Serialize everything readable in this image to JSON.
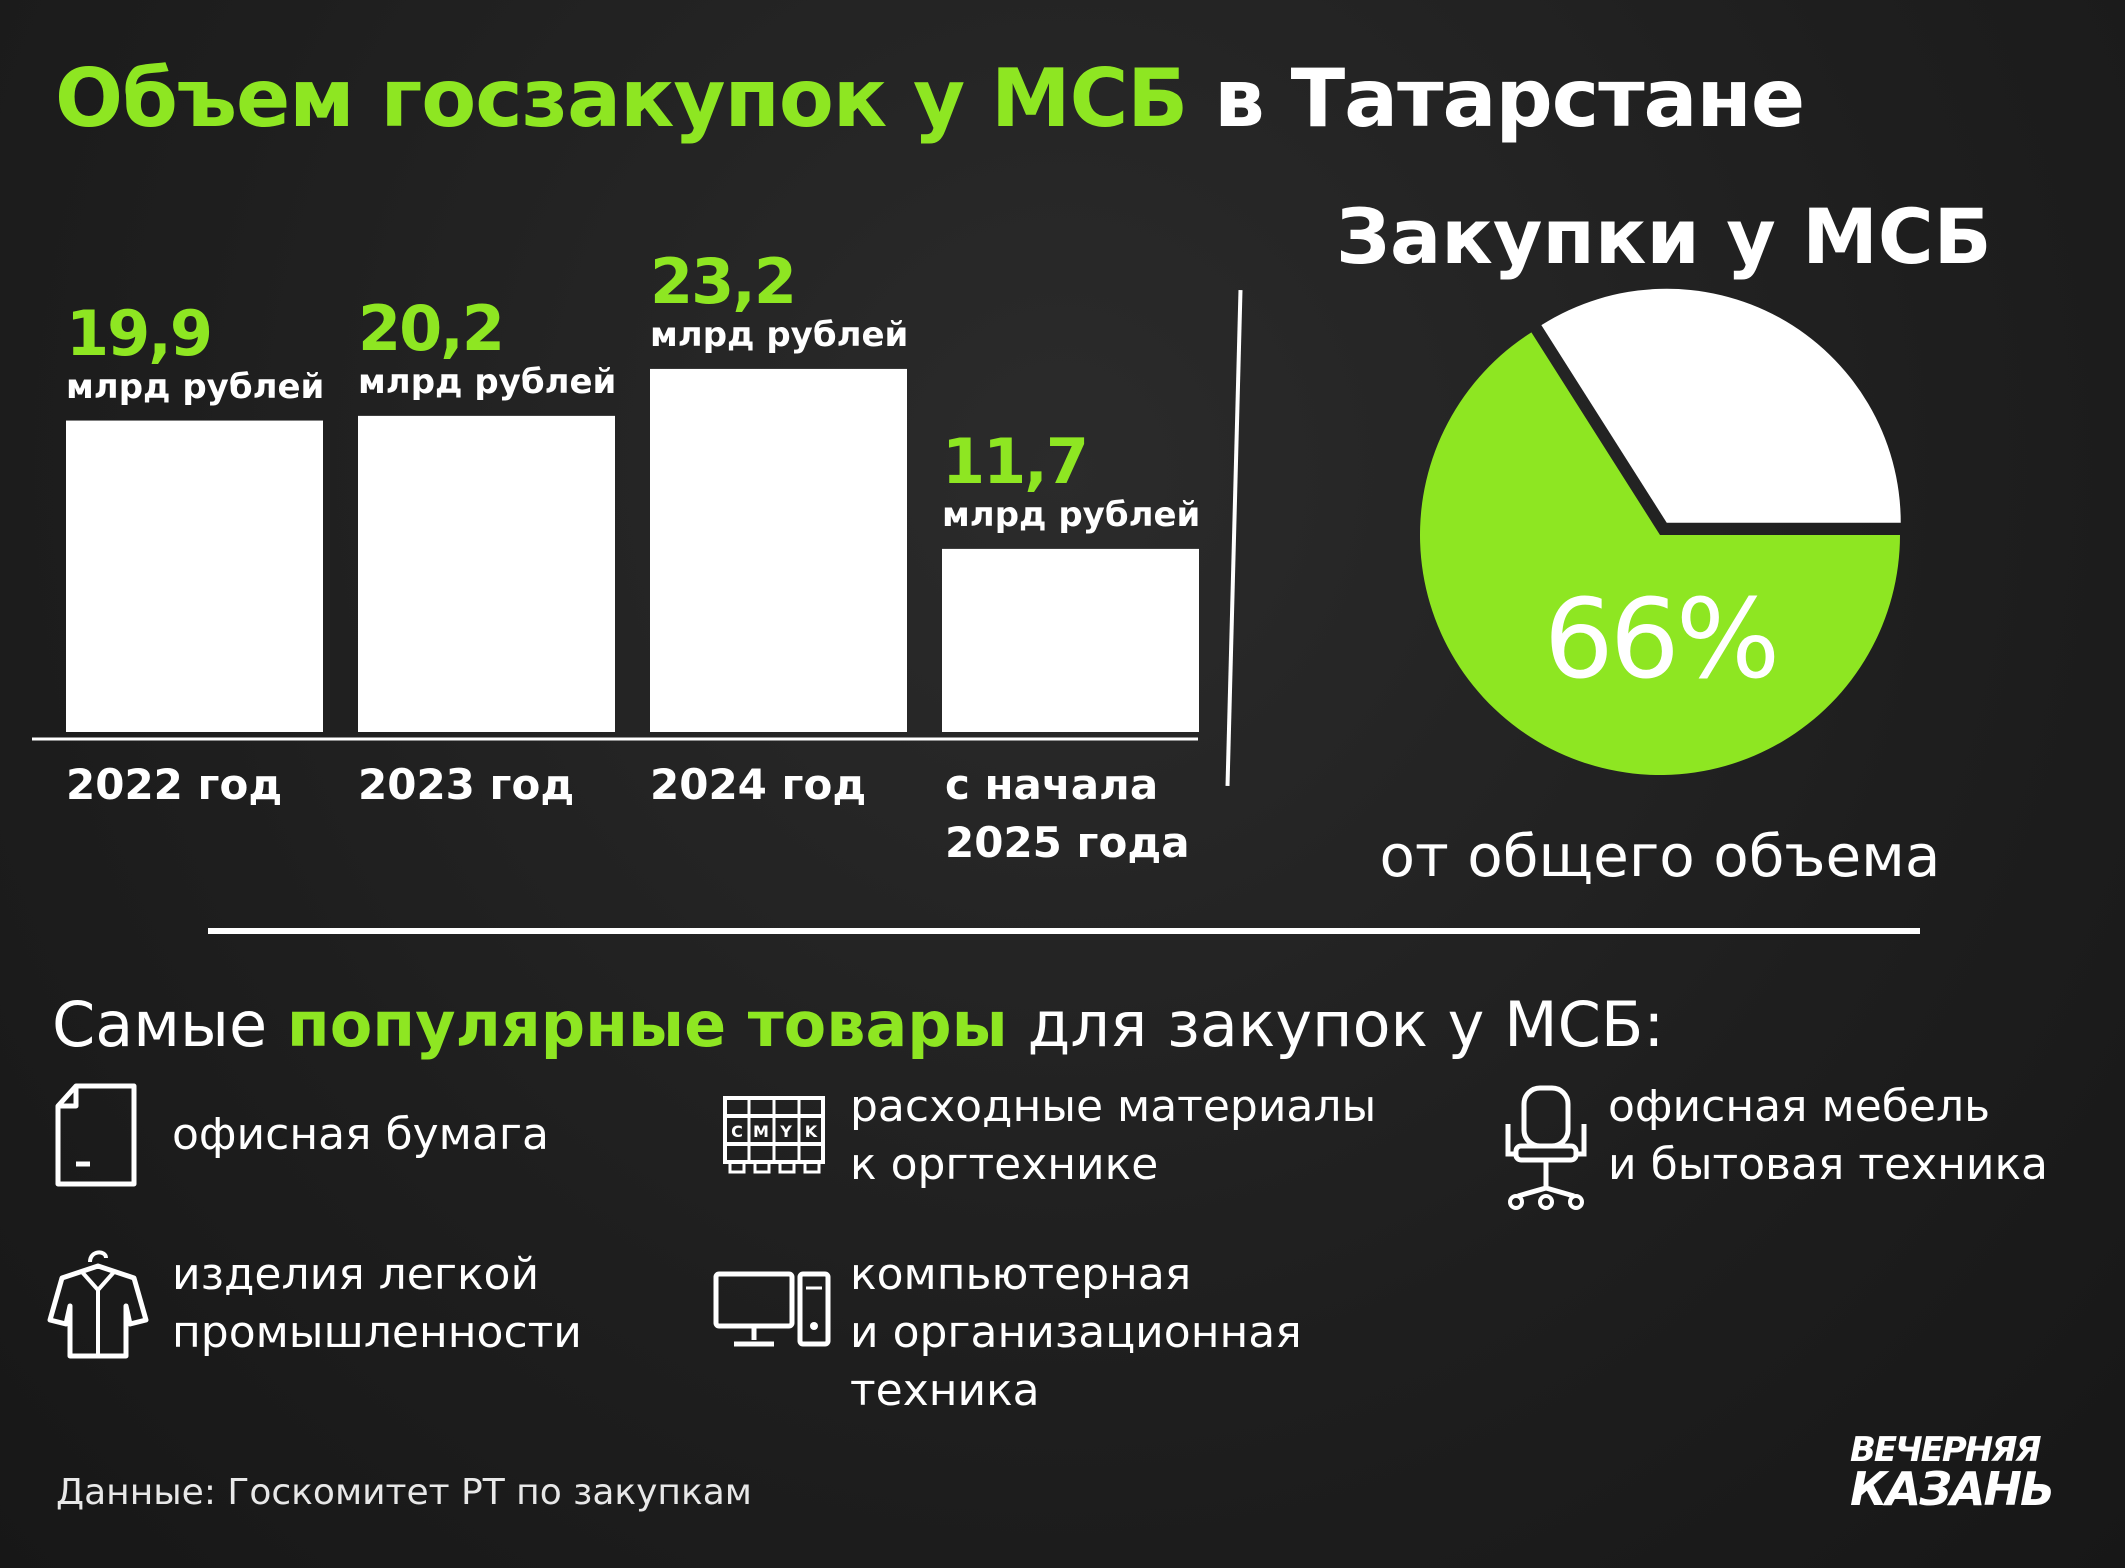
{
  "title": {
    "part1": "Объем госзакупок у МСБ",
    "part2": " в Татарстане"
  },
  "chart_data": [
    {
      "type": "bar",
      "categories": [
        "2022 год",
        "2023 год",
        "2024 год",
        "с начала 2025 года"
      ],
      "category_lines": [
        [
          "2022 год"
        ],
        [
          "2023 год"
        ],
        [
          "2024 год"
        ],
        [
          "с начала",
          "2025 года"
        ]
      ],
      "values": [
        19.9,
        20.2,
        23.2,
        11.7
      ],
      "value_labels": [
        "19,9",
        "20,2",
        "23,2",
        "11,7"
      ],
      "unit": "млрд рублей"
    },
    {
      "type": "pie",
      "title": "Закупки у МСБ",
      "values": [
        66,
        34
      ],
      "label": "66%",
      "caption": "от общего объема"
    }
  ],
  "colors": {
    "accent": "#8ee622",
    "bar": "#ffffff",
    "pie_rest": "#ffffff"
  },
  "categories_section": {
    "title": {
      "part1": "Самые ",
      "part2": "популярные товары",
      "part3": " для закупок у МСБ:"
    },
    "items": [
      {
        "icon": "paper-icon",
        "lines": [
          "офисная бумага"
        ]
      },
      {
        "icon": "cmyk-cartridge-icon",
        "lines": [
          "расходные материалы",
          "к оргтехнике"
        ],
        "icon_text": [
          "C",
          "M",
          "Y",
          "K"
        ]
      },
      {
        "icon": "office-chair-icon",
        "lines": [
          "офисная мебель",
          "и бытовая техника"
        ]
      },
      {
        "icon": "shirt-icon",
        "lines": [
          "изделия легкой",
          "промышленности"
        ]
      },
      {
        "icon": "computer-icon",
        "lines": [
          "компьютерная",
          "и организационная",
          "техника"
        ]
      }
    ]
  },
  "source": "Данные: Госкомитет РТ по закупкам",
  "logo": {
    "line1": "ВЕЧЕРНЯЯ",
    "line2": "КАЗАНЬ"
  }
}
